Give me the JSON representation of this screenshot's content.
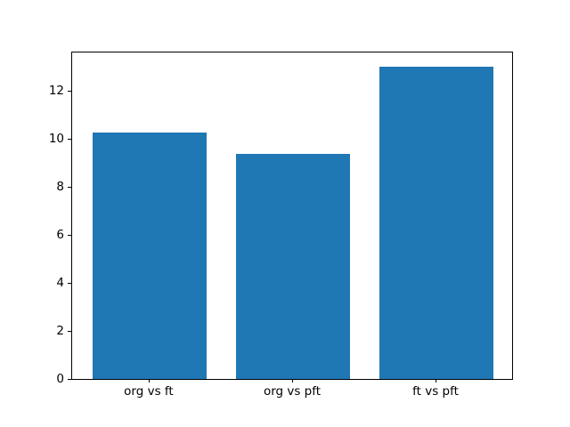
{
  "figure": {
    "background": "#ffffff",
    "spine_color": "#000000",
    "text_color": "#000000"
  },
  "chart_data": {
    "type": "bar",
    "title": "",
    "xlabel": "",
    "ylabel": "",
    "categories": [
      "org vs ft",
      "org vs pft",
      "ft vs pft"
    ],
    "values": [
      10.25,
      9.35,
      13.0
    ],
    "bar_color": "#1f77b4",
    "bar_width": 0.8,
    "yticks": [
      0,
      2,
      4,
      6,
      8,
      10,
      12
    ],
    "ylim": [
      0,
      13.65
    ],
    "xlim": [
      -0.54,
      2.54
    ],
    "grid": false,
    "legend_position": "none"
  }
}
